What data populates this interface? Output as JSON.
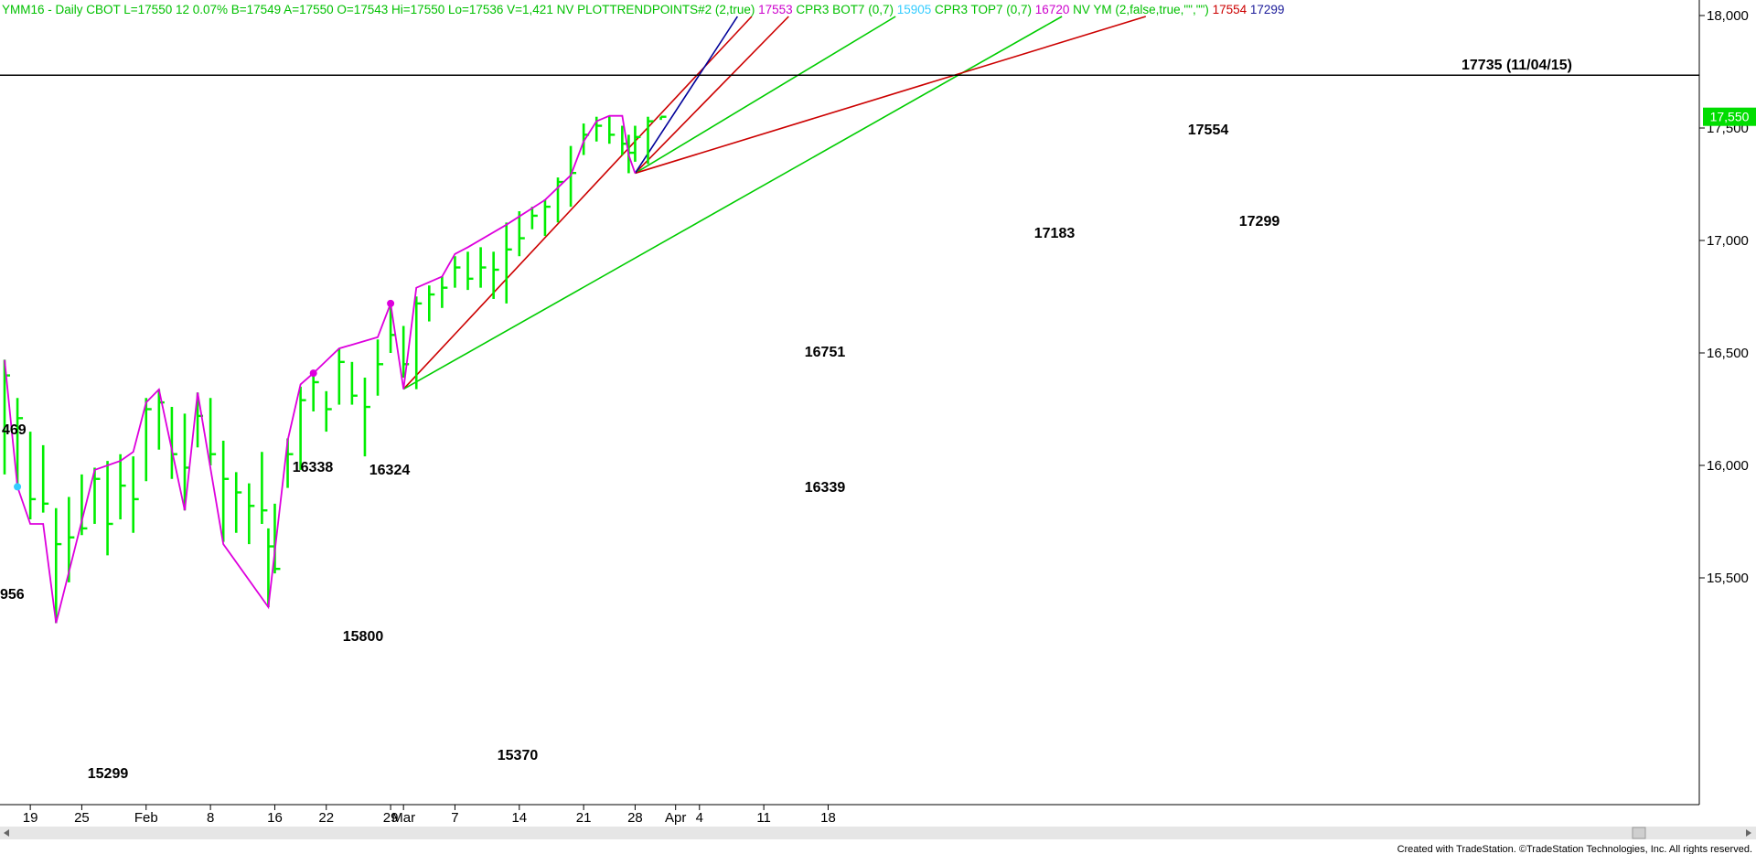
{
  "header": {
    "items": [
      {
        "text": "YMM16 - Daily  CBOT  L=17550  12  0.07%  B=17549  A=17550  O=17543  Hi=17550  Lo=17536  V=1,421  NV  PLOTTRENDPOINTS#2 (2,true)",
        "color": "#00c000"
      },
      {
        "text": "17553",
        "color": "#cc00cc"
      },
      {
        "text": "CPR3 BOT7 (0,7)",
        "color": "#00c000"
      },
      {
        "text": "15905",
        "color": "#33ccff"
      },
      {
        "text": "CPR3 TOP7 (0,7)",
        "color": "#00c000"
      },
      {
        "text": "16720",
        "color": "#cc00cc"
      },
      {
        "text": "NV YM (2,false,true,\"\",\"\")",
        "color": "#00c000"
      },
      {
        "text": "17554",
        "color": "#cc0000"
      },
      {
        "text": "17299",
        "color": "#1a1a99"
      }
    ]
  },
  "colors": {
    "bar": "#00ee00",
    "swing_line": "#dd00dd",
    "red_line": "#cc0000",
    "green_line": "#00cc00",
    "blue_line": "#000099",
    "resistance": "#000000",
    "price_badge": "#00dd00",
    "price_badge_text": "#ffffff",
    "scrollbar": "#e6e6e6"
  },
  "footer": {
    "credit": "Created with TradeStation. ©TradeStation Technologies, Inc. All rights reserved."
  },
  "chart_data": {
    "type": "bar",
    "subtype": "ohlc",
    "price_axis": {
      "ticks": [
        15500,
        16000,
        16500,
        17000,
        17500,
        18000
      ],
      "tick_labels": [
        "15,500",
        "16,000",
        "16,500",
        "17,000",
        "17,500",
        "18,000"
      ],
      "range": [
        15230,
        18020
      ],
      "position": "right"
    },
    "last_price": {
      "value": 17550,
      "label": "17,550"
    },
    "date_axis": {
      "labels": [
        {
          "date": "2016-01-19",
          "label": "19"
        },
        {
          "date": "2016-01-25",
          "label": "25"
        },
        {
          "date": "2016-02-01",
          "label": "Feb"
        },
        {
          "date": "2016-02-08",
          "label": "8"
        },
        {
          "date": "2016-02-16",
          "label": "16"
        },
        {
          "date": "2016-02-22",
          "label": "22"
        },
        {
          "date": "2016-02-29",
          "label": "29"
        },
        {
          "date": "2016-03-01",
          "label": "Mar"
        },
        {
          "date": "2016-03-07",
          "label": "7"
        },
        {
          "date": "2016-03-14",
          "label": "14"
        },
        {
          "date": "2016-03-21",
          "label": "21"
        },
        {
          "date": "2016-03-28",
          "label": "28"
        },
        {
          "date": "2016-04-01",
          "label": "Apr"
        },
        {
          "date": "2016-04-04",
          "label": "4"
        },
        {
          "date": "2016-04-11",
          "label": "11"
        },
        {
          "date": "2016-04-18",
          "label": "18"
        }
      ]
    },
    "bars": [
      {
        "date": "2016-01-14",
        "high": 16470,
        "low": 15960,
        "close": 16400
      },
      {
        "date": "2016-01-15",
        "high": 16300,
        "low": 15905,
        "close": 16210
      },
      {
        "date": "2016-01-19",
        "high": 16150,
        "low": 15760,
        "close": 15850
      },
      {
        "date": "2016-01-20",
        "high": 16090,
        "low": 15790,
        "close": 15830
      },
      {
        "date": "2016-01-21",
        "high": 15810,
        "low": 15299,
        "close": 15650
      },
      {
        "date": "2016-01-22",
        "high": 15860,
        "low": 15480,
        "close": 15680
      },
      {
        "date": "2016-01-25",
        "high": 15960,
        "low": 15690,
        "close": 15720
      },
      {
        "date": "2016-01-26",
        "high": 15990,
        "low": 15740,
        "close": 15940
      },
      {
        "date": "2016-01-27",
        "high": 16020,
        "low": 15600,
        "close": 15740
      },
      {
        "date": "2016-01-28",
        "high": 16050,
        "low": 15760,
        "close": 15910
      },
      {
        "date": "2016-01-29",
        "high": 16040,
        "low": 15700,
        "close": 15850
      },
      {
        "date": "2016-02-01",
        "high": 16300,
        "low": 15930,
        "close": 16250
      },
      {
        "date": "2016-02-02",
        "high": 16338,
        "low": 16070,
        "close": 16280
      },
      {
        "date": "2016-02-03",
        "high": 16260,
        "low": 15940,
        "close": 16050
      },
      {
        "date": "2016-02-04",
        "high": 16230,
        "low": 15800,
        "close": 15990
      },
      {
        "date": "2016-02-05",
        "high": 16324,
        "low": 16080,
        "close": 16220
      },
      {
        "date": "2016-02-08",
        "high": 16300,
        "low": 16000,
        "close": 16050
      },
      {
        "date": "2016-02-09",
        "high": 16110,
        "low": 15660,
        "close": 15940
      },
      {
        "date": "2016-02-10",
        "high": 15970,
        "low": 15700,
        "close": 15880
      },
      {
        "date": "2016-02-11",
        "high": 15920,
        "low": 15650,
        "close": 15820
      },
      {
        "date": "2016-02-12",
        "high": 16060,
        "low": 15740,
        "close": 15800
      },
      {
        "date": "2016-02-15",
        "high": 15720,
        "low": 15370,
        "close": 15640
      },
      {
        "date": "2016-02-16",
        "high": 15830,
        "low": 15520,
        "close": 15540
      },
      {
        "date": "2016-02-17",
        "high": 16120,
        "low": 15900,
        "close": 16050
      },
      {
        "date": "2016-02-18",
        "high": 16350,
        "low": 15980,
        "close": 16290
      },
      {
        "date": "2016-02-19",
        "high": 16400,
        "low": 16240,
        "close": 16370
      },
      {
        "date": "2016-02-22",
        "high": 16330,
        "low": 16150,
        "close": 16250
      },
      {
        "date": "2016-02-23",
        "high": 16520,
        "low": 16270,
        "close": 16460
      },
      {
        "date": "2016-02-24",
        "high": 16460,
        "low": 16270,
        "close": 16310
      },
      {
        "date": "2016-02-25",
        "high": 16390,
        "low": 16040,
        "close": 16260
      },
      {
        "date": "2016-02-26",
        "high": 16560,
        "low": 16310,
        "close": 16450
      },
      {
        "date": "2016-02-29",
        "high": 16720,
        "low": 16500,
        "close": 16580
      },
      {
        "date": "2016-03-01",
        "high": 16620,
        "low": 16390,
        "close": 16450
      },
      {
        "date": "2016-03-02",
        "high": 16751,
        "low": 16339,
        "close": 16720
      },
      {
        "date": "2016-03-03",
        "high": 16800,
        "low": 16640,
        "close": 16760
      },
      {
        "date": "2016-03-04",
        "high": 16840,
        "low": 16700,
        "close": 16790
      },
      {
        "date": "2016-03-07",
        "high": 16930,
        "low": 16790,
        "close": 16880
      },
      {
        "date": "2016-03-08",
        "high": 16950,
        "low": 16780,
        "close": 16830
      },
      {
        "date": "2016-03-09",
        "high": 16970,
        "low": 16790,
        "close": 16880
      },
      {
        "date": "2016-03-10",
        "high": 16950,
        "low": 16740,
        "close": 16870
      },
      {
        "date": "2016-03-11",
        "high": 17080,
        "low": 16720,
        "close": 16960
      },
      {
        "date": "2016-03-14",
        "high": 17130,
        "low": 16930,
        "close": 17010
      },
      {
        "date": "2016-03-15",
        "high": 17150,
        "low": 17050,
        "close": 17110
      },
      {
        "date": "2016-03-16",
        "high": 17183,
        "low": 17020,
        "close": 17150
      },
      {
        "date": "2016-03-17",
        "high": 17280,
        "low": 17080,
        "close": 17260
      },
      {
        "date": "2016-03-18",
        "high": 17420,
        "low": 17150,
        "close": 17300
      },
      {
        "date": "2016-03-21",
        "high": 17520,
        "low": 17380,
        "close": 17470
      },
      {
        "date": "2016-03-22",
        "high": 17550,
        "low": 17440,
        "close": 17510
      },
      {
        "date": "2016-03-23",
        "high": 17554,
        "low": 17430,
        "close": 17470
      },
      {
        "date": "2016-03-24",
        "high": 17510,
        "low": 17380,
        "close": 17430
      },
      {
        "date": "2016-03-25",
        "high": 17470,
        "low": 17299,
        "close": 17390
      },
      {
        "date": "2016-03-28",
        "high": 17510,
        "low": 17350,
        "close": 17460
      },
      {
        "date": "2016-03-29",
        "high": 17550,
        "low": 17340,
        "close": 17530
      },
      {
        "date": "2016-03-30",
        "high": 17550,
        "low": 17536,
        "close": 17550
      }
    ],
    "swing_points": [
      {
        "date": "2016-01-14",
        "price": 16469,
        "label": "469"
      },
      {
        "date": "2016-01-15",
        "price": 15956,
        "label": "956"
      },
      {
        "date": "2016-01-21",
        "price": 15299,
        "label": "15299"
      },
      {
        "date": "2016-02-02",
        "price": 16338,
        "label": "16338"
      },
      {
        "date": "2016-02-04",
        "price": 15800,
        "label": "15800"
      },
      {
        "date": "2016-02-05",
        "price": 16324,
        "label": "16324"
      },
      {
        "date": "2016-02-15",
        "price": 15370,
        "label": "15370"
      },
      {
        "date": "2016-03-01",
        "price": 16339,
        "label": "16339"
      },
      {
        "date": "2016-03-02",
        "price": 16751,
        "label": "16751"
      },
      {
        "date": "2016-03-16",
        "price": 17183,
        "label": "17183"
      },
      {
        "date": "2016-03-23",
        "price": 17554,
        "label": "17554"
      },
      {
        "date": "2016-03-25",
        "price": 17299,
        "label": "17299"
      }
    ],
    "swing_line_points": [
      [
        "2016-01-14",
        16469
      ],
      [
        "2016-01-15",
        15905
      ],
      [
        "2016-01-19",
        15740
      ],
      [
        "2016-01-20",
        15740
      ],
      [
        "2016-01-21",
        15299
      ],
      [
        "2016-01-26",
        15980
      ],
      [
        "2016-01-28",
        16020
      ],
      [
        "2016-01-29",
        16060
      ],
      [
        "2016-02-01",
        16280
      ],
      [
        "2016-02-02",
        16338
      ],
      [
        "2016-02-04",
        15800
      ],
      [
        "2016-02-05",
        16324
      ],
      [
        "2016-02-09",
        15650
      ],
      [
        "2016-02-15",
        15370
      ],
      [
        "2016-02-17",
        16110
      ],
      [
        "2016-02-18",
        16360
      ],
      [
        "2016-02-19",
        16410
      ],
      [
        "2016-02-23",
        16520
      ],
      [
        "2016-02-26",
        16570
      ],
      [
        "2016-02-29",
        16720
      ],
      [
        "2016-03-01",
        16339
      ],
      [
        "2016-03-02",
        16790
      ],
      [
        "2016-03-04",
        16840
      ],
      [
        "2016-03-07",
        16940
      ],
      [
        "2016-03-08",
        16970
      ],
      [
        "2016-03-11",
        17070
      ],
      [
        "2016-03-16",
        17180
      ],
      [
        "2016-03-18",
        17290
      ],
      [
        "2016-03-21",
        17440
      ],
      [
        "2016-03-22",
        17530
      ],
      [
        "2016-03-23",
        17554
      ],
      [
        "2016-03-24",
        17554
      ],
      [
        "2016-03-25",
        17380
      ],
      [
        "2016-03-28",
        17299
      ]
    ],
    "swing_markers": [
      {
        "date": "2016-01-15",
        "price": 15905,
        "color": "#33ccff"
      },
      {
        "date": "2016-02-19",
        "price": 16410,
        "color": "#dd00dd"
      },
      {
        "date": "2016-02-29",
        "price": 16720,
        "color": "#dd00dd"
      }
    ],
    "resistance": {
      "value": 17735,
      "label": "17735 (11/04/15)"
    },
    "trendlines": [
      {
        "from": [
          "2016-03-01",
          16339
        ],
        "through": [
          "2016-03-24",
          17380
        ],
        "color": "red"
      },
      {
        "from": [
          "2016-03-01",
          16339
        ],
        "through": [
          "2016-04-19",
          17440
        ],
        "color": "green"
      },
      {
        "from": [
          "2016-03-28",
          17299
        ],
        "through": [
          "2016-04-13",
          18000
        ],
        "color": "red"
      },
      {
        "from": [
          "2016-03-28",
          17299
        ],
        "through": [
          "2016-04-19",
          17850
        ],
        "color": "green"
      },
      {
        "from": [
          "2016-03-28",
          17299
        ],
        "through": [
          "2016-04-19",
          17580
        ],
        "color": "red"
      },
      {
        "from": [
          "2016-03-28",
          17299
        ],
        "through": [
          "2016-04-07",
          18000
        ],
        "color": "blue"
      }
    ]
  }
}
